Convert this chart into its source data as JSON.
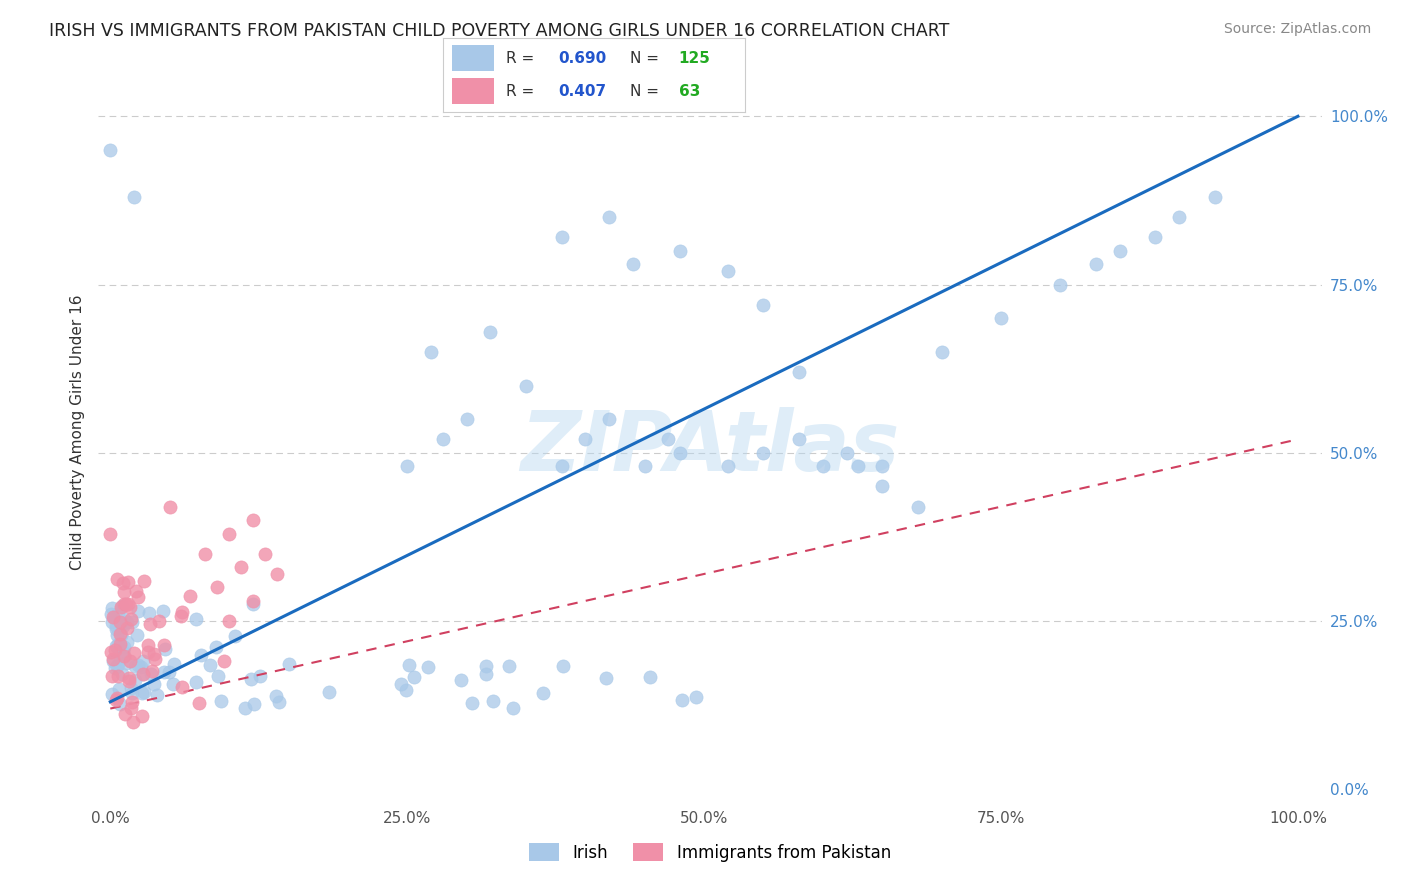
{
  "title": "IRISH VS IMMIGRANTS FROM PAKISTAN CHILD POVERTY AMONG GIRLS UNDER 16 CORRELATION CHART",
  "source": "Source: ZipAtlas.com",
  "ylabel": "Child Poverty Among Girls Under 16",
  "irish_R": 0.69,
  "irish_N": 125,
  "pakistan_R": 0.407,
  "pakistan_N": 63,
  "irish_color": "#a8c8e8",
  "pakistan_color": "#f090a8",
  "irish_line_color": "#1a6bbf",
  "pakistan_line_color": "#d04060",
  "watermark": "ZIPAtlas",
  "background_color": "#ffffff",
  "legend_R_color": "#2255cc",
  "legend_N_color": "#22aa22",
  "tick_color": "#4488cc",
  "grid_color": "#cccccc",
  "title_color": "#222222",
  "source_color": "#888888",
  "ylabel_color": "#333333"
}
